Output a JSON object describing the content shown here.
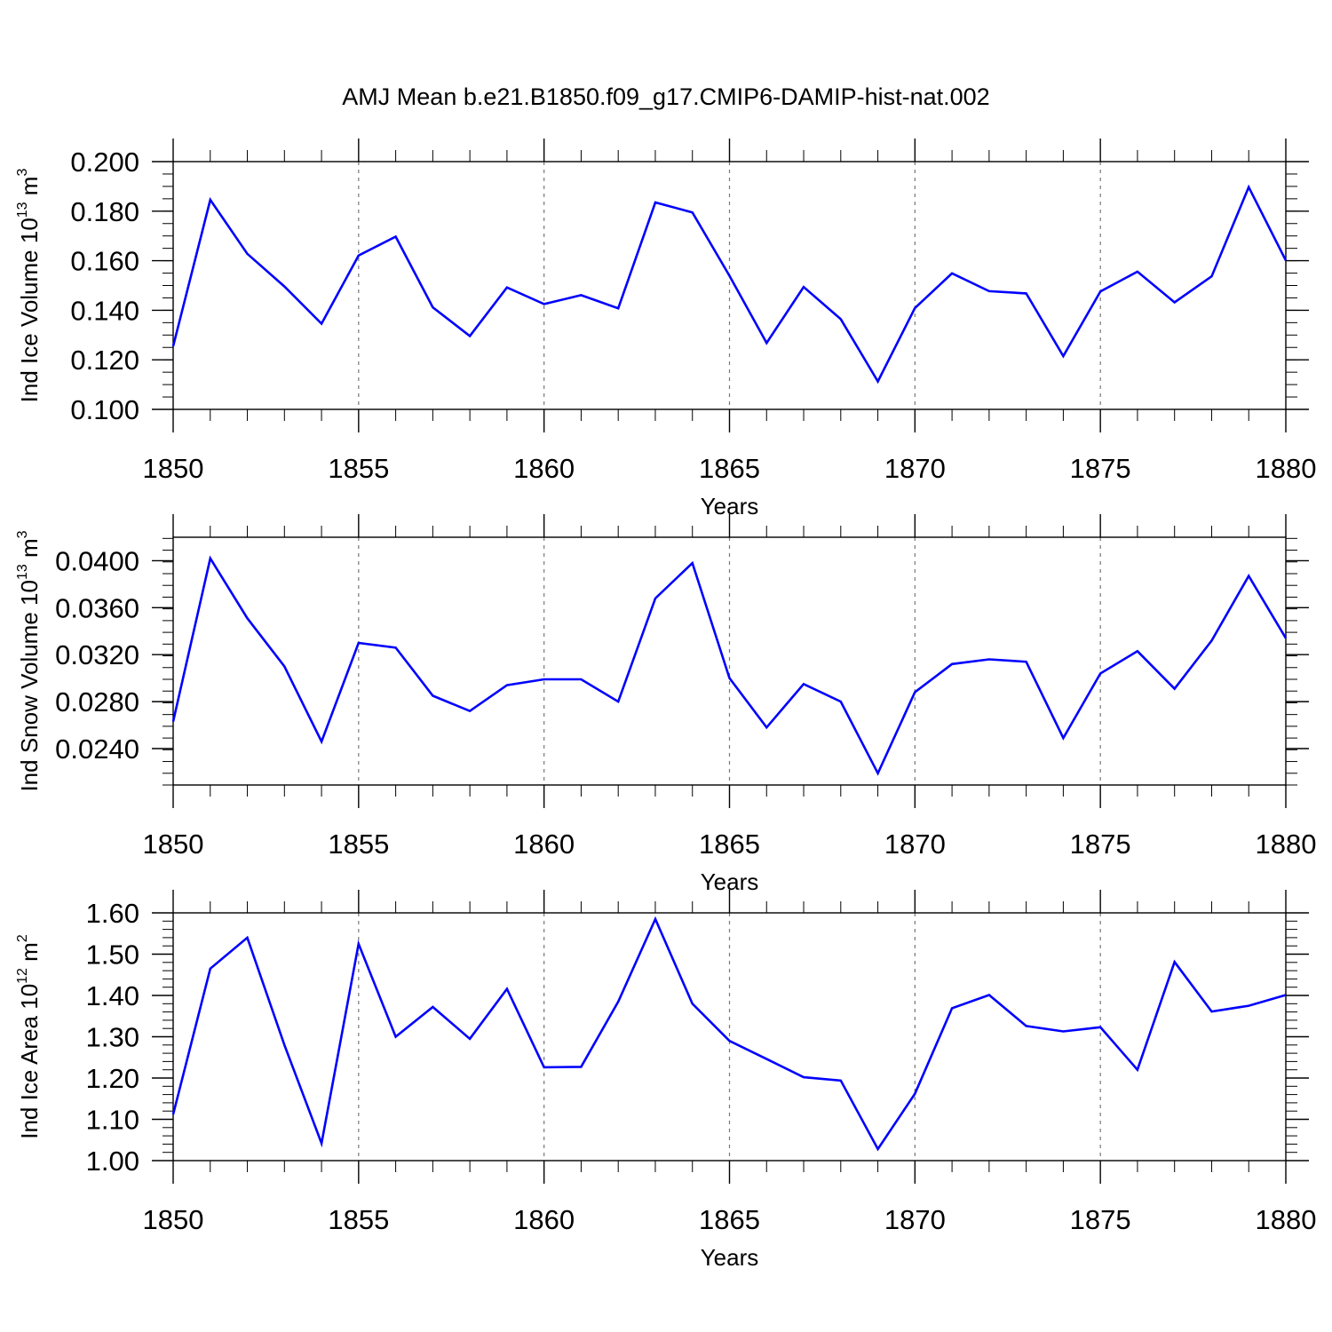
{
  "figure_title": "AMJ Mean b.e21.B1850.f09_g17.CMIP6-DAMIP-hist-nat.002",
  "colors": {
    "line": "#0000ff",
    "axis": "#000000",
    "grid": "#777777"
  },
  "chart_data": [
    {
      "type": "line",
      "title": "AMJ Mean b.e21.B1850.f09_g17.CMIP6-DAMIP-hist-nat.002",
      "xlabel": "Years",
      "ylabel": "Ind Ice Volume 10",
      "ylabel_sup": "13",
      "ylabel_unit": "m",
      "ylabel_unit_sup": "3",
      "xlim": [
        1850,
        1880
      ],
      "ylim": [
        0.1,
        0.2
      ],
      "xticks": [
        1850,
        1855,
        1860,
        1865,
        1870,
        1875,
        1880
      ],
      "xtick_labels": [
        "1850",
        "1855",
        "1860",
        "1865",
        "1870",
        "1875",
        "1880"
      ],
      "yticks": [
        0.1,
        0.12,
        0.14,
        0.16,
        0.18,
        0.2
      ],
      "ytick_labels": [
        "0.100",
        "0.120",
        "0.140",
        "0.160",
        "0.180",
        "0.200"
      ],
      "yminor_step": 0.005,
      "x": [
        1850,
        1851,
        1852,
        1853,
        1854,
        1855,
        1856,
        1857,
        1858,
        1859,
        1860,
        1861,
        1862,
        1863,
        1864,
        1865,
        1866,
        1867,
        1868,
        1869,
        1870,
        1871,
        1872,
        1873,
        1874,
        1875,
        1876,
        1877,
        1878,
        1879,
        1880
      ],
      "values": [
        0.1255,
        0.1846,
        0.1628,
        0.1496,
        0.1346,
        0.1621,
        0.1697,
        0.1412,
        0.1296,
        0.1492,
        0.1425,
        0.1461,
        0.1408,
        0.1835,
        0.1795,
        0.1539,
        0.1268,
        0.1494,
        0.1364,
        0.1113,
        0.1409,
        0.1549,
        0.1477,
        0.1468,
        0.1215,
        0.1476,
        0.1556,
        0.1432,
        0.1537,
        0.1897,
        0.1601
      ],
      "grid": "vertical dashed at major x ticks"
    },
    {
      "type": "line",
      "xlabel": "Years",
      "ylabel": "Ind Snow Volume 10",
      "ylabel_sup": "13",
      "ylabel_unit": "m",
      "ylabel_unit_sup": "3",
      "xlim": [
        1850,
        1880
      ],
      "ylim": [
        0.0209,
        0.042
      ],
      "xticks": [
        1850,
        1855,
        1860,
        1865,
        1870,
        1875,
        1880
      ],
      "xtick_labels": [
        "1850",
        "1855",
        "1860",
        "1865",
        "1870",
        "1875",
        "1880"
      ],
      "yticks": [
        0.024,
        0.028,
        0.032,
        0.036,
        0.04
      ],
      "ytick_labels": [
        "0.0240",
        "0.0280",
        "0.0320",
        "0.0360",
        "0.0400"
      ],
      "yminor_step": 0.001,
      "x": [
        1850,
        1851,
        1852,
        1853,
        1854,
        1855,
        1856,
        1857,
        1858,
        1859,
        1860,
        1861,
        1862,
        1863,
        1864,
        1865,
        1866,
        1867,
        1868,
        1869,
        1870,
        1871,
        1872,
        1873,
        1874,
        1875,
        1876,
        1877,
        1878,
        1879,
        1880
      ],
      "values": [
        0.0263,
        0.0402,
        0.0351,
        0.031,
        0.0246,
        0.033,
        0.0326,
        0.0285,
        0.0272,
        0.0294,
        0.0299,
        0.0299,
        0.028,
        0.0368,
        0.0398,
        0.03,
        0.0258,
        0.0295,
        0.028,
        0.0219,
        0.0288,
        0.0312,
        0.0316,
        0.0314,
        0.0249,
        0.0304,
        0.0323,
        0.0291,
        0.0332,
        0.0387,
        0.0334
      ],
      "grid": "vertical dashed at major x ticks"
    },
    {
      "type": "line",
      "xlabel": "Years",
      "ylabel": "Ind Ice Area 10",
      "ylabel_sup": "12",
      "ylabel_unit": "m",
      "ylabel_unit_sup": "2",
      "xlim": [
        1850,
        1880
      ],
      "ylim": [
        1.0,
        1.6
      ],
      "xticks": [
        1850,
        1855,
        1860,
        1865,
        1870,
        1875,
        1880
      ],
      "xtick_labels": [
        "1850",
        "1855",
        "1860",
        "1865",
        "1870",
        "1875",
        "1880"
      ],
      "yticks": [
        1.0,
        1.1,
        1.2,
        1.3,
        1.4,
        1.5,
        1.6
      ],
      "ytick_labels": [
        "1.00",
        "1.10",
        "1.20",
        "1.30",
        "1.40",
        "1.50",
        "1.60"
      ],
      "yminor_step": 0.02,
      "x": [
        1850,
        1851,
        1852,
        1853,
        1854,
        1855,
        1856,
        1857,
        1858,
        1859,
        1860,
        1861,
        1862,
        1863,
        1864,
        1865,
        1866,
        1867,
        1868,
        1869,
        1870,
        1871,
        1872,
        1873,
        1874,
        1875,
        1876,
        1877,
        1878,
        1879,
        1880
      ],
      "values": [
        1.112,
        1.465,
        1.54,
        1.28,
        1.042,
        1.525,
        1.3,
        1.372,
        1.295,
        1.416,
        1.226,
        1.227,
        1.385,
        1.585,
        1.38,
        1.29,
        1.246,
        1.202,
        1.194,
        1.028,
        1.162,
        1.369,
        1.401,
        1.326,
        1.313,
        1.323,
        1.22,
        1.481,
        1.361,
        1.375,
        1.401
      ],
      "grid": "vertical dashed at major x ticks"
    }
  ]
}
